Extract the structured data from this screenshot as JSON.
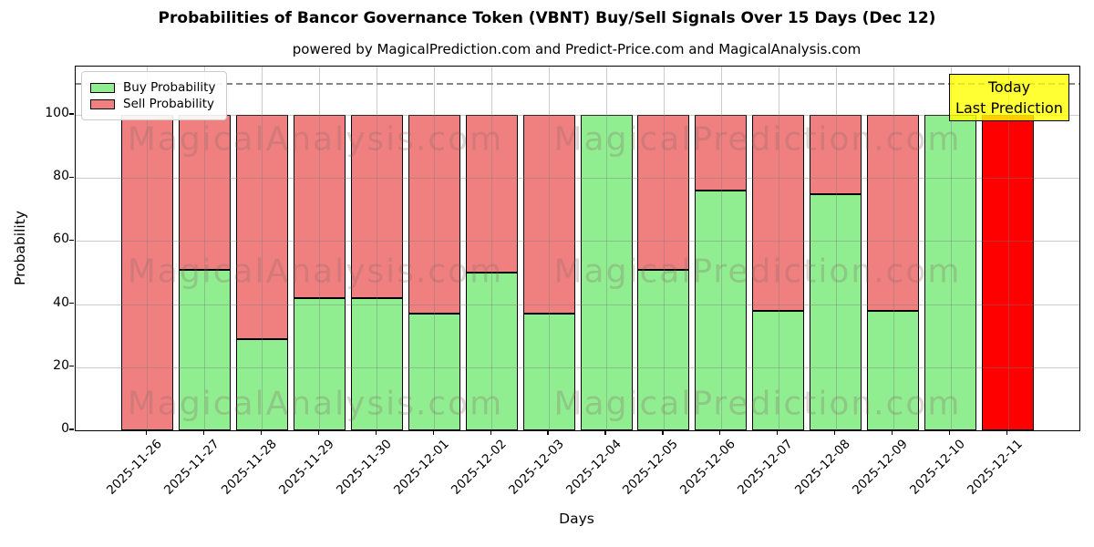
{
  "header": {
    "title": "Probabilities of Bancor Governance Token (VBNT) Buy/Sell Signals Over 15 Days (Dec 12)",
    "subtitle": "powered by MagicalPrediction.com and Predict-Price.com and MagicalAnalysis.com"
  },
  "legend": {
    "buy_label": "Buy Probability",
    "sell_label": "Sell Probability"
  },
  "annotation": {
    "line1": "Today",
    "line2": "Last Prediction"
  },
  "watermarks": {
    "left": "MagicalAnalysis.com",
    "right": "MagicalPrediction.com"
  },
  "axes": {
    "xlabel": "Days",
    "ylabel": "Probability"
  },
  "colors": {
    "buy": "#90EE90",
    "sell": "#F08080",
    "today_sell": "#FF0000",
    "annotation_bg": "#FFFF00",
    "grid": "#b0b0b0",
    "dashed_line": "#878787"
  },
  "chart_data": {
    "type": "bar",
    "stacked": true,
    "title": "Probabilities of Bancor Governance Token (VBNT) Buy/Sell Signals Over 15 Days (Dec 12)",
    "subtitle": "powered by MagicalPrediction.com and Predict-Price.com and MagicalAnalysis.com",
    "xlabel": "Days",
    "ylabel": "Probability",
    "ylim": [
      0,
      115
    ],
    "yticks": [
      0,
      20,
      40,
      60,
      80,
      100
    ],
    "grid": true,
    "dashed_line_y": 110,
    "legend_position": "upper left",
    "categories": [
      "2025-11-26",
      "2025-11-27",
      "2025-11-28",
      "2025-11-29",
      "2025-11-30",
      "2025-12-01",
      "2025-12-02",
      "2025-12-03",
      "2025-12-04",
      "2025-12-05",
      "2025-12-06",
      "2025-12-07",
      "2025-12-08",
      "2025-12-09",
      "2025-12-10",
      "2025-12-11"
    ],
    "series": [
      {
        "name": "Buy Probability",
        "color": "#90EE90",
        "values": [
          0,
          51,
          29,
          42,
          42,
          37,
          50,
          37,
          100,
          51,
          76,
          38,
          75,
          38,
          100,
          0
        ]
      },
      {
        "name": "Sell Probability",
        "color": "#F08080",
        "values": [
          100,
          49,
          71,
          58,
          58,
          63,
          50,
          63,
          0,
          49,
          24,
          62,
          25,
          62,
          0,
          100
        ]
      }
    ],
    "highlight_last_bar": {
      "category": "2025-12-11",
      "color": "#FF0000",
      "note": "Today Last Prediction"
    }
  }
}
